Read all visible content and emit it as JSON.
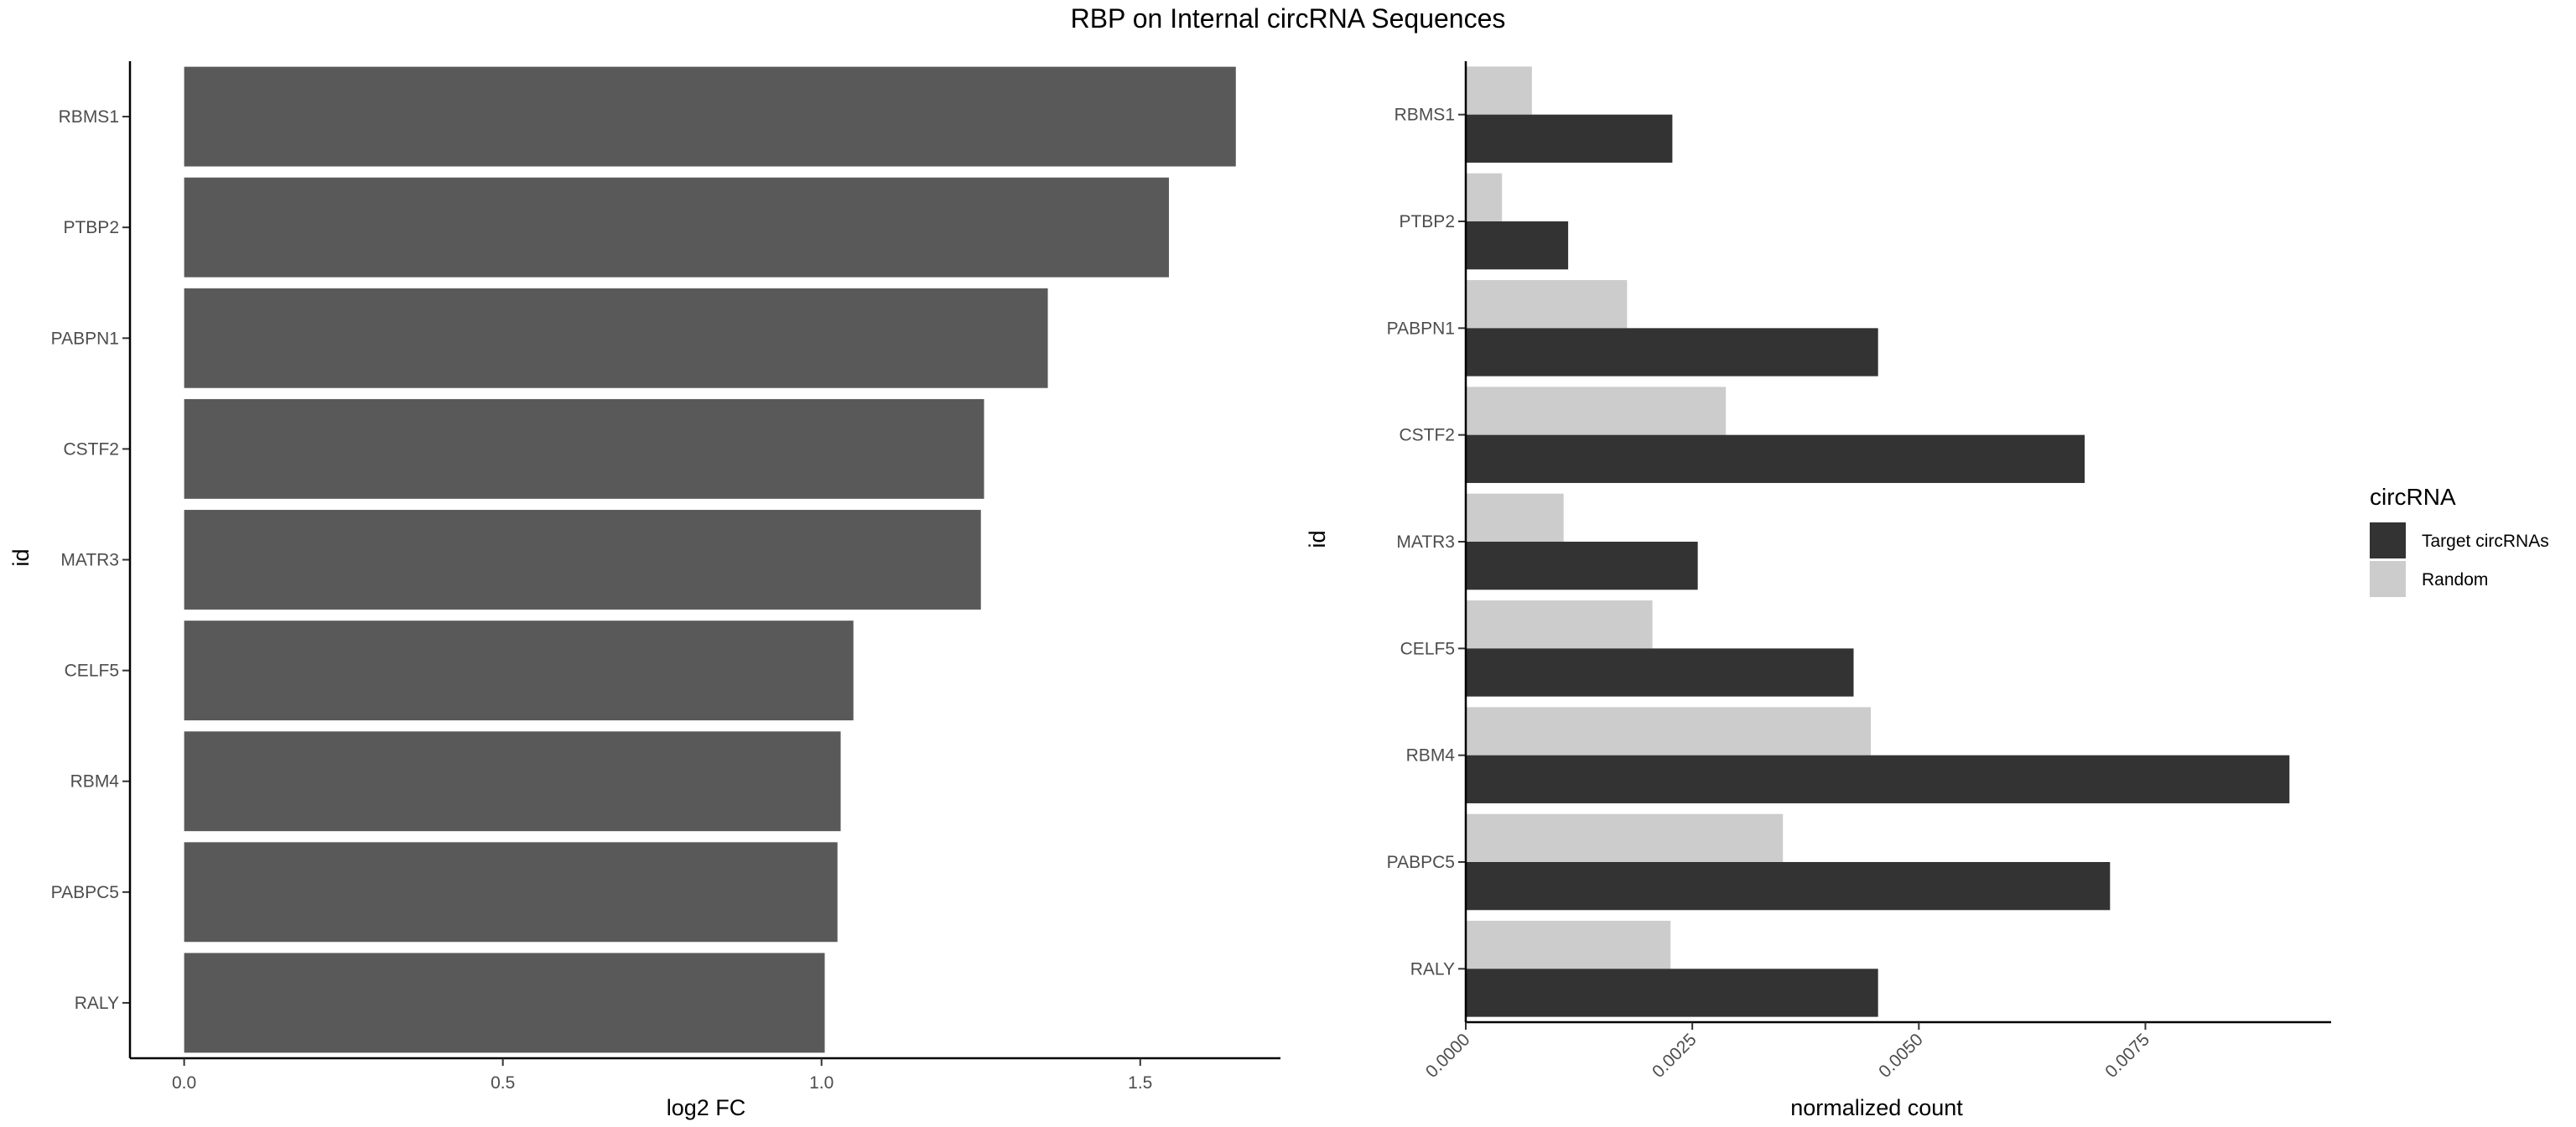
{
  "title": "RBP on Internal circRNA Sequences",
  "colors": {
    "bar": "#595959",
    "target": "#333333",
    "random": "#cccccc",
    "axis": "#000000",
    "tick_text": "#4d4d4d"
  },
  "chart_data": [
    {
      "type": "bar",
      "orientation": "horizontal",
      "ylabel": "id",
      "xlabel": "log2 FC",
      "categories": [
        "RBMS1",
        "PTBP2",
        "PABPN1",
        "CSTF2",
        "MATR3",
        "CELF5",
        "RBM4",
        "PABPC5",
        "RALY"
      ],
      "values": [
        1.65,
        1.545,
        1.355,
        1.255,
        1.25,
        1.05,
        1.03,
        1.025,
        1.005
      ],
      "xlim": [
        -0.085,
        1.72
      ],
      "xticks": [
        0.0,
        0.5,
        1.0,
        1.5
      ],
      "xtick_labels": [
        "0.0",
        "0.5",
        "1.0",
        "1.5"
      ],
      "grid": false
    },
    {
      "type": "bar",
      "orientation": "horizontal",
      "grouped": true,
      "ylabel": "id",
      "xlabel": "normalized count",
      "categories": [
        "RBMS1",
        "PTBP2",
        "PABPN1",
        "CSTF2",
        "MATR3",
        "CELF5",
        "RBM4",
        "PABPC5",
        "RALY"
      ],
      "legend_title": "circRNA",
      "legend_position": "right",
      "series": [
        {
          "name": "Target circRNAs",
          "values": [
            0.00228,
            0.00113,
            0.00455,
            0.00683,
            0.00256,
            0.00428,
            0.00909,
            0.00711,
            0.00455
          ]
        },
        {
          "name": "Random",
          "values": [
            0.00073,
            0.0004,
            0.00178,
            0.00287,
            0.00108,
            0.00206,
            0.00447,
            0.0035,
            0.00226
          ]
        }
      ],
      "xlim": [
        0,
        0.00955
      ],
      "xticks": [
        0.0,
        0.0025,
        0.005,
        0.0075
      ],
      "xtick_labels": [
        "0.0000",
        "0.0025",
        "0.0050",
        "0.0075"
      ],
      "grid": false
    }
  ]
}
